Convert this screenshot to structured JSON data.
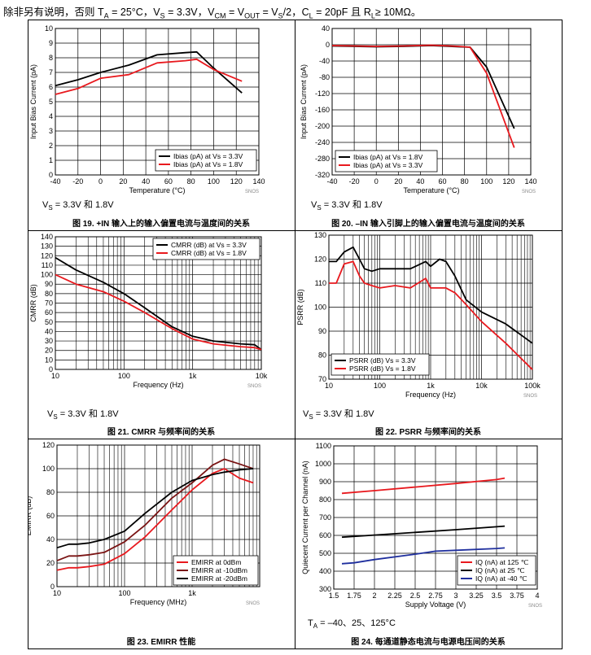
{
  "header": {
    "p1": "除非另有说明，否则 T",
    "s1": "A",
    "p2": " = 25°C，V",
    "s2": "S",
    "p3": " = 3.3V，V",
    "s3": "CM",
    "p4": " = V",
    "s4": "OUT",
    "p5": " = V",
    "s5": "S",
    "p6": "/2，C",
    "s6": "L",
    "p7": " = 20pF 且 R",
    "s7": "L",
    "p8": "≥ 10MΩ。"
  },
  "panels": [
    {
      "caption": "图 19. +IN 输入上的输入偏置电流与温度间的关系",
      "condition": {
        "pre": "V",
        "sub": "S",
        "post": " = 3.3V 和 1.8V"
      },
      "watermark": "SNOS"
    },
    {
      "caption": "图 20. –IN 输入引脚上的输入偏置电流与温度间的关系",
      "condition": {
        "pre": "V",
        "sub": "S",
        "post": " = 3.3V 和 1.8V"
      },
      "watermark": "SNOS"
    },
    {
      "caption": "图 21. CMRR 与频率间的关系",
      "condition": {
        "pre": "V",
        "sub": "S",
        "post": " = 3.3V 和 1.8V"
      },
      "watermark": "SNOS"
    },
    {
      "caption": "图 22. PSRR 与频率间的关系",
      "condition": {
        "pre": "V",
        "sub": "S",
        "post": " = 3.3V 和 1.8V"
      },
      "watermark": "SNOS"
    },
    {
      "caption": "图 23. EMIRR 性能",
      "condition": null,
      "watermark": "SNOS"
    },
    {
      "caption": "图 24. 每通道静态电流与电源电压间的关系",
      "condition": {
        "pre": "T",
        "sub": "A",
        "post": " = –40、25、125°C"
      },
      "watermark": "SNOS"
    }
  ],
  "chart_data": [
    {
      "type": "line",
      "xscale": "linear",
      "xlabel": "Temperature (°C)",
      "ylabel": "Input Bias Current (pA)",
      "xlim": [
        -40,
        140
      ],
      "ylim": [
        0,
        10
      ],
      "xticks": [
        -40,
        -20,
        0,
        20,
        40,
        60,
        80,
        100,
        120,
        140
      ],
      "xtick_labels": [
        "-40",
        "-20",
        "0",
        "20",
        "40",
        "60",
        "80",
        "100",
        "120",
        "140"
      ],
      "yticks": [
        0,
        1,
        2,
        3,
        4,
        5,
        6,
        7,
        8,
        9,
        10
      ],
      "ytick_labels": [
        "0",
        "1",
        "2",
        "3",
        "4",
        "5",
        "6",
        "7",
        "8",
        "9",
        "10"
      ],
      "series": [
        {
          "name": "Ibias (pA) at Vs = 3.3V",
          "color": "#000000",
          "x": [
            -40,
            -20,
            0,
            25,
            50,
            75,
            85,
            100,
            125
          ],
          "y": [
            6.1,
            6.5,
            7.0,
            7.5,
            8.2,
            8.35,
            8.4,
            7.3,
            5.6
          ]
        },
        {
          "name": "Ibias (pA) at Vs = 1.8V",
          "color": "#e8191e",
          "x": [
            -40,
            -20,
            0,
            25,
            50,
            75,
            85,
            100,
            125
          ],
          "y": [
            5.5,
            5.9,
            6.6,
            6.85,
            7.65,
            7.8,
            7.9,
            7.2,
            6.4
          ]
        }
      ],
      "legend_position": "bottom-right"
    },
    {
      "type": "line",
      "xscale": "linear",
      "xlabel": "Temperature (°C)",
      "ylabel": "Input Bias Current (pA)",
      "xlim": [
        -40,
        140
      ],
      "ylim": [
        -320,
        40
      ],
      "xticks": [
        -40,
        -20,
        0,
        20,
        40,
        60,
        80,
        100,
        120,
        140
      ],
      "xtick_labels": [
        "-40",
        "-20",
        "0",
        "20",
        "40",
        "60",
        "80",
        "100",
        "120",
        "140"
      ],
      "yticks": [
        -320,
        -280,
        -240,
        -200,
        -160,
        -120,
        -80,
        -40,
        0,
        40
      ],
      "ytick_labels": [
        "-320",
        "-280",
        "-240",
        "-200",
        "-160",
        "-120",
        "-80",
        "-40",
        "0",
        "40"
      ],
      "series": [
        {
          "name": "Ibias (pA) at Vs = 1.8V",
          "color": "#000000",
          "x": [
            -40,
            -20,
            0,
            25,
            50,
            75,
            85,
            100,
            125
          ],
          "y": [
            -3,
            -4,
            -5,
            -4,
            -2,
            -5,
            -6,
            -55,
            -206
          ]
        },
        {
          "name": "Ibias (pA) at Vs = 3.3V",
          "color": "#e8191e",
          "x": [
            -40,
            -20,
            0,
            25,
            50,
            75,
            85,
            100,
            125
          ],
          "y": [
            -2,
            -3,
            -4,
            -3,
            -1,
            -4,
            -6,
            -70,
            -253
          ]
        }
      ],
      "legend_position": "bottom-left"
    },
    {
      "type": "line",
      "xscale": "log",
      "xlabel": "Frequency (Hz)",
      "ylabel": "CMRR (dB)",
      "xlim": [
        10,
        10000
      ],
      "ylim": [
        0,
        140
      ],
      "xticks": [
        10,
        100,
        1000,
        10000
      ],
      "xtick_labels": [
        "10",
        "100",
        "1k",
        "10k"
      ],
      "yticks": [
        0,
        10,
        20,
        30,
        40,
        50,
        60,
        70,
        80,
        90,
        100,
        110,
        120,
        130,
        140
      ],
      "ytick_labels": [
        "0",
        "10",
        "20",
        "30",
        "40",
        "50",
        "60",
        "70",
        "80",
        "90",
        "100",
        "110",
        "120",
        "130",
        "140"
      ],
      "series": [
        {
          "name": "CMRR (dB) at Vs = 3.3V",
          "color": "#000000",
          "x": [
            10,
            20,
            50,
            100,
            200,
            500,
            1000,
            2000,
            5000,
            8000,
            10000
          ],
          "y": [
            118,
            105,
            92,
            80,
            65,
            45,
            35,
            30,
            27,
            26,
            21
          ]
        },
        {
          "name": "CMRR (dB) at Vs = 1.8V",
          "color": "#e8191e",
          "x": [
            10,
            20,
            50,
            100,
            200,
            500,
            1000,
            2000,
            5000,
            8000,
            10000
          ],
          "y": [
            100,
            90,
            82,
            72,
            60,
            43,
            32,
            27,
            24,
            23,
            21
          ]
        }
      ],
      "legend_position": "top-right"
    },
    {
      "type": "line",
      "xscale": "log",
      "xlabel": "Frequency (Hz)",
      "ylabel": "PSRR (dB)",
      "xlim": [
        10,
        100000
      ],
      "ylim": [
        70,
        130
      ],
      "xticks": [
        10,
        100,
        1000,
        10000,
        100000
      ],
      "xtick_labels": [
        "10",
        "100",
        "1k",
        "10k",
        "100k"
      ],
      "yticks": [
        70,
        80,
        90,
        100,
        110,
        120,
        130
      ],
      "ytick_labels": [
        "70",
        "80",
        "90",
        "100",
        "110",
        "120",
        "130"
      ],
      "series": [
        {
          "name": "PSRR (dB) Vs = 3.3V",
          "color": "#000000",
          "x": [
            10,
            14,
            20,
            30,
            40,
            50,
            70,
            100,
            200,
            400,
            800,
            1000,
            1500,
            2000,
            3000,
            5000,
            10000,
            30000,
            100000
          ],
          "y": [
            119,
            119,
            123,
            125,
            120,
            116,
            115,
            116,
            116,
            116,
            119,
            117,
            120,
            119,
            113,
            103,
            98,
            93,
            85
          ]
        },
        {
          "name": "PSRR (dB) Vs = 1.8V",
          "color": "#e8191e",
          "x": [
            10,
            14,
            20,
            30,
            40,
            50,
            70,
            100,
            200,
            400,
            800,
            1000,
            1500,
            2000,
            3000,
            5000,
            10000,
            30000,
            100000
          ],
          "y": [
            110,
            110,
            118,
            119,
            113,
            110,
            109,
            108,
            109,
            108,
            112,
            108,
            108,
            108,
            106,
            101,
            94,
            85,
            74
          ]
        }
      ],
      "legend_position": "bottom-left"
    },
    {
      "type": "line",
      "xscale": "log",
      "xlabel": "Frequency (MHz)",
      "ylabel": "EMIRR (dB)",
      "xlim": [
        10,
        10000
      ],
      "ylim": [
        0,
        120
      ],
      "xticks": [
        10,
        100,
        1000
      ],
      "xtick_labels": [
        "10",
        "100",
        "1k"
      ],
      "yticks": [
        0,
        20,
        40,
        60,
        80,
        100,
        120
      ],
      "ytick_labels": [
        "0",
        "20",
        "40",
        "60",
        "80",
        "100",
        "120"
      ],
      "series": [
        {
          "name": "EMIRR at 0dBm",
          "color": "#e8191e",
          "x": [
            10,
            15,
            20,
            30,
            50,
            100,
            200,
            500,
            1000,
            2000,
            3000,
            5000,
            8000
          ],
          "y": [
            14,
            16,
            16,
            17,
            19,
            28,
            42,
            65,
            82,
            96,
            100,
            92,
            88
          ]
        },
        {
          "name": "EMIRR at -10dBm",
          "color": "#7a1414",
          "x": [
            10,
            15,
            20,
            30,
            50,
            100,
            200,
            500,
            1000,
            2000,
            3000,
            5000,
            8000
          ],
          "y": [
            22,
            26,
            26,
            27,
            29,
            38,
            52,
            75,
            88,
            103,
            108,
            104,
            100
          ]
        },
        {
          "name": "EMIRR at -20dBm",
          "color": "#000000",
          "x": [
            10,
            15,
            20,
            30,
            50,
            100,
            200,
            500,
            1000,
            2000,
            3000,
            5000,
            8000
          ],
          "y": [
            33,
            36,
            36,
            37,
            40,
            47,
            62,
            80,
            90,
            95,
            97,
            99,
            100
          ]
        }
      ],
      "legend_position": "bottom-right"
    },
    {
      "type": "line",
      "xscale": "linear",
      "xlabel": "Supply Voltage (V)",
      "ylabel": "Quiecent Current per Channel (nA)",
      "xlim": [
        1.5,
        4
      ],
      "ylim": [
        300,
        1100
      ],
      "xticks": [
        1.5,
        1.75,
        2,
        2.25,
        2.5,
        2.75,
        3,
        3.25,
        3.5,
        3.75,
        4
      ],
      "xtick_labels": [
        "1.5",
        "1.75",
        "2",
        "2.25",
        "2.5",
        "2.75",
        "3",
        "3.25",
        "3.5",
        "3.75",
        "4"
      ],
      "yticks": [
        300,
        400,
        500,
        600,
        700,
        800,
        900,
        1000,
        1100
      ],
      "ytick_labels": [
        "300",
        "400",
        "500",
        "600",
        "700",
        "800",
        "900",
        "1000",
        "1100"
      ],
      "series": [
        {
          "name": "IQ (nA) at 125 ℃",
          "color": "#e8191e",
          "x": [
            1.6,
            2.0,
            2.5,
            3.0,
            3.5,
            3.6
          ],
          "y": [
            835,
            850,
            870,
            890,
            912,
            920
          ]
        },
        {
          "name": "IQ (nA) at 25 ℃",
          "color": "#000000",
          "x": [
            1.6,
            2.0,
            2.5,
            3.0,
            3.5,
            3.6
          ],
          "y": [
            590,
            602,
            617,
            632,
            648,
            652
          ]
        },
        {
          "name": "IQ (nA) at -40 ℃",
          "color": "#1f2f9e",
          "x": [
            1.6,
            1.75,
            2.0,
            2.5,
            2.75,
            3.0,
            3.5,
            3.6
          ],
          "y": [
            442,
            447,
            465,
            495,
            512,
            517,
            527,
            530
          ]
        }
      ],
      "legend_position": "bottom-right"
    }
  ]
}
